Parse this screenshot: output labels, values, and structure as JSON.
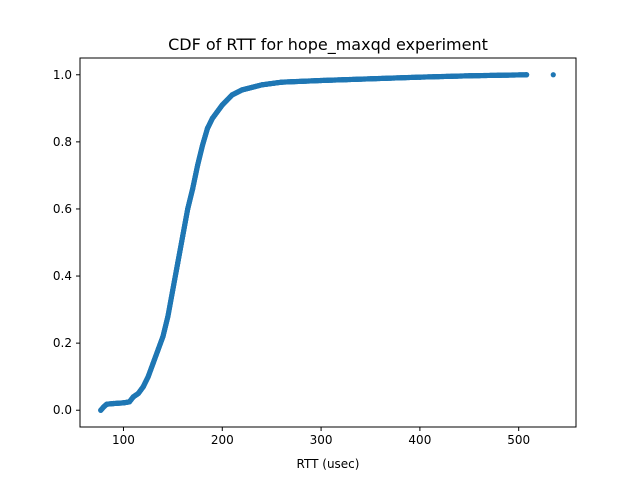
{
  "chart_data": {
    "type": "scatter",
    "title": "CDF of RTT for hope_maxqd experiment",
    "xlabel": "RTT (usec)",
    "ylabel": "",
    "xlim": [
      56,
      558
    ],
    "ylim": [
      -0.05,
      1.05
    ],
    "xticks": [
      100,
      200,
      300,
      400,
      500
    ],
    "yticks": [
      0.0,
      0.2,
      0.4,
      0.6,
      0.8,
      1.0
    ],
    "xtick_labels": [
      "100",
      "200",
      "300",
      "400",
      "500"
    ],
    "ytick_labels": [
      "0.0",
      "0.2",
      "0.4",
      "0.6",
      "0.8",
      "1.0"
    ],
    "grid": false,
    "marker_color": "#1f77b4",
    "curve_points": [
      {
        "x": 77,
        "y": 0.0
      },
      {
        "x": 80,
        "y": 0.01
      },
      {
        "x": 83,
        "y": 0.018
      },
      {
        "x": 90,
        "y": 0.02
      },
      {
        "x": 100,
        "y": 0.022
      },
      {
        "x": 106,
        "y": 0.025
      },
      {
        "x": 110,
        "y": 0.04
      },
      {
        "x": 115,
        "y": 0.05
      },
      {
        "x": 120,
        "y": 0.07
      },
      {
        "x": 125,
        "y": 0.1
      },
      {
        "x": 130,
        "y": 0.14
      },
      {
        "x": 135,
        "y": 0.18
      },
      {
        "x": 140,
        "y": 0.22
      },
      {
        "x": 145,
        "y": 0.28
      },
      {
        "x": 150,
        "y": 0.36
      },
      {
        "x": 155,
        "y": 0.44
      },
      {
        "x": 160,
        "y": 0.52
      },
      {
        "x": 165,
        "y": 0.6
      },
      {
        "x": 170,
        "y": 0.66
      },
      {
        "x": 175,
        "y": 0.73
      },
      {
        "x": 180,
        "y": 0.79
      },
      {
        "x": 185,
        "y": 0.84
      },
      {
        "x": 190,
        "y": 0.87
      },
      {
        "x": 195,
        "y": 0.89
      },
      {
        "x": 200,
        "y": 0.91
      },
      {
        "x": 210,
        "y": 0.94
      },
      {
        "x": 220,
        "y": 0.955
      },
      {
        "x": 240,
        "y": 0.97
      },
      {
        "x": 260,
        "y": 0.978
      },
      {
        "x": 300,
        "y": 0.983
      },
      {
        "x": 350,
        "y": 0.988
      },
      {
        "x": 400,
        "y": 0.993
      },
      {
        "x": 450,
        "y": 0.997
      },
      {
        "x": 508,
        "y": 1.0
      }
    ],
    "outlier_points": [
      {
        "x": 535,
        "y": 1.0
      }
    ]
  }
}
